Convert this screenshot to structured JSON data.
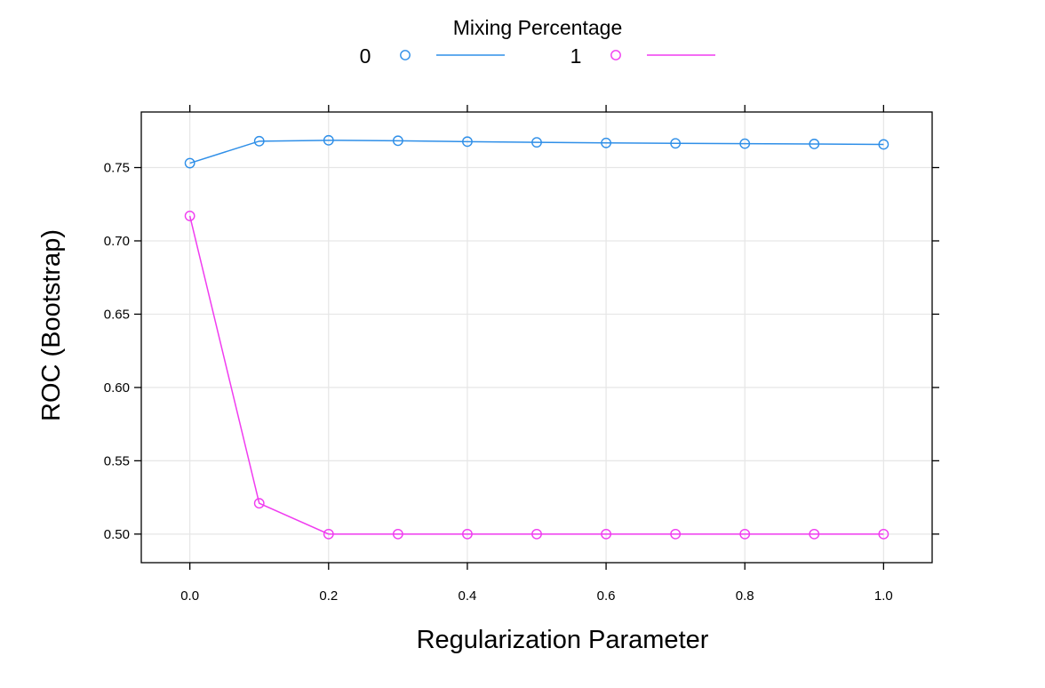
{
  "chart_data": {
    "type": "line",
    "xlabel": "Regularization Parameter",
    "ylabel": "ROC (Bootstrap)",
    "xlim": [
      -0.07,
      1.07
    ],
    "ylim": [
      0.4805,
      0.7879
    ],
    "xticks": [
      0.0,
      0.2,
      0.4,
      0.6,
      0.8,
      1.0
    ],
    "xtick_labels": [
      "0.0",
      "0.2",
      "0.4",
      "0.6",
      "0.8",
      "1.0"
    ],
    "yticks": [
      0.5,
      0.55,
      0.6,
      0.65,
      0.7,
      0.75
    ],
    "ytick_labels": [
      "0.50",
      "0.55",
      "0.60",
      "0.65",
      "0.70",
      "0.75"
    ],
    "grid": true,
    "legend": {
      "title": "Mixing Percentage",
      "position": "top"
    },
    "x": [
      0.0,
      0.1,
      0.2,
      0.3,
      0.4,
      0.5,
      0.6,
      0.7,
      0.8,
      0.9,
      1.0
    ],
    "series": [
      {
        "name": "0",
        "color": "#2f8fe8",
        "marker": "open-circle",
        "values": [
          0.753,
          0.768,
          0.7686,
          0.7683,
          0.7677,
          0.7672,
          0.7668,
          0.7665,
          0.7663,
          0.7661,
          0.7658
        ]
      },
      {
        "name": "1",
        "color": "#f03cf0",
        "marker": "open-circle",
        "values": [
          0.717,
          0.521,
          0.5,
          0.5,
          0.5,
          0.5,
          0.5,
          0.5,
          0.5,
          0.5,
          0.5
        ]
      }
    ]
  }
}
